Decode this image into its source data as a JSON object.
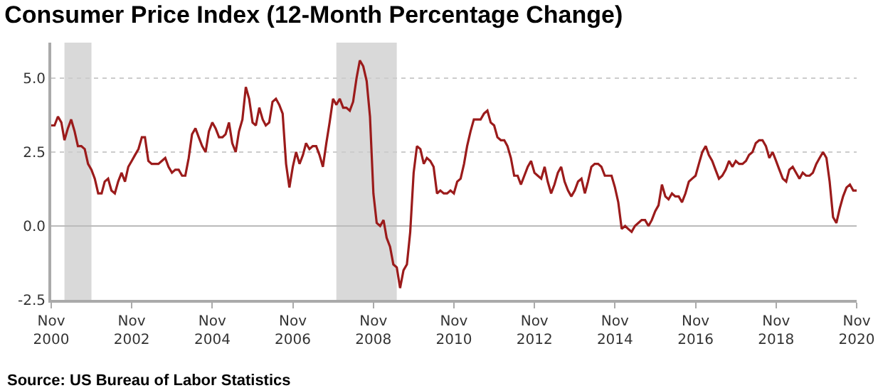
{
  "chart_data": {
    "type": "line",
    "title": "Consumer Price Index (12-Month Percentage Change)",
    "annotations": [
      "Source: US Bureau of Labor Statistics"
    ],
    "series": [
      {
        "color": "#9b1b1b",
        "x": [
          "2000-11",
          "2000-12",
          "2001-01",
          "2001-02",
          "2001-03",
          "2001-04",
          "2001-05",
          "2001-06",
          "2001-07",
          "2001-08",
          "2001-09",
          "2001-10",
          "2001-11",
          "2001-12",
          "2002-01",
          "2002-02",
          "2002-03",
          "2002-04",
          "2002-05",
          "2002-06",
          "2002-07",
          "2002-08",
          "2002-09",
          "2002-10",
          "2002-11",
          "2002-12",
          "2003-01",
          "2003-02",
          "2003-03",
          "2003-04",
          "2003-05",
          "2003-06",
          "2003-07",
          "2003-08",
          "2003-09",
          "2003-10",
          "2003-11",
          "2003-12",
          "2004-01",
          "2004-02",
          "2004-03",
          "2004-04",
          "2004-05",
          "2004-06",
          "2004-07",
          "2004-08",
          "2004-09",
          "2004-10",
          "2004-11",
          "2004-12",
          "2005-01",
          "2005-02",
          "2005-03",
          "2005-04",
          "2005-05",
          "2005-06",
          "2005-07",
          "2005-08",
          "2005-09",
          "2005-10",
          "2005-11",
          "2005-12",
          "2006-01",
          "2006-02",
          "2006-03",
          "2006-04",
          "2006-05",
          "2006-06",
          "2006-07",
          "2006-08",
          "2006-09",
          "2006-10",
          "2006-11",
          "2006-12",
          "2007-01",
          "2007-02",
          "2007-03",
          "2007-04",
          "2007-05",
          "2007-06",
          "2007-07",
          "2007-08",
          "2007-09",
          "2007-10",
          "2007-11",
          "2007-12",
          "2008-01",
          "2008-02",
          "2008-03",
          "2008-04",
          "2008-05",
          "2008-06",
          "2008-07",
          "2008-08",
          "2008-09",
          "2008-10",
          "2008-11",
          "2008-12",
          "2009-01",
          "2009-02",
          "2009-03",
          "2009-04",
          "2009-05",
          "2009-06",
          "2009-07",
          "2009-08",
          "2009-09",
          "2009-10",
          "2009-11",
          "2009-12",
          "2010-01",
          "2010-02",
          "2010-03",
          "2010-04",
          "2010-05",
          "2010-06",
          "2010-07",
          "2010-08",
          "2010-09",
          "2010-10",
          "2010-11",
          "2010-12",
          "2011-01",
          "2011-02",
          "2011-03",
          "2011-04",
          "2011-05",
          "2011-06",
          "2011-07",
          "2011-08",
          "2011-09",
          "2011-10",
          "2011-11",
          "2011-12",
          "2012-01",
          "2012-02",
          "2012-03",
          "2012-04",
          "2012-05",
          "2012-06",
          "2012-07",
          "2012-08",
          "2012-09",
          "2012-10",
          "2012-11",
          "2012-12",
          "2013-01",
          "2013-02",
          "2013-03",
          "2013-04",
          "2013-05",
          "2013-06",
          "2013-07",
          "2013-08",
          "2013-09",
          "2013-10",
          "2013-11",
          "2013-12",
          "2014-01",
          "2014-02",
          "2014-03",
          "2014-04",
          "2014-05",
          "2014-06",
          "2014-07",
          "2014-08",
          "2014-09",
          "2014-10",
          "2014-11",
          "2014-12",
          "2015-01",
          "2015-02",
          "2015-03",
          "2015-04",
          "2015-05",
          "2015-06",
          "2015-07",
          "2015-08",
          "2015-09",
          "2015-10",
          "2015-11",
          "2015-12",
          "2016-01",
          "2016-02",
          "2016-03",
          "2016-04",
          "2016-05",
          "2016-06",
          "2016-07",
          "2016-08",
          "2016-09",
          "2016-10",
          "2016-11",
          "2016-12",
          "2017-01",
          "2017-02",
          "2017-03",
          "2017-04",
          "2017-05",
          "2017-06",
          "2017-07",
          "2017-08",
          "2017-09",
          "2017-10",
          "2017-11",
          "2017-12",
          "2018-01",
          "2018-02",
          "2018-03",
          "2018-04",
          "2018-05",
          "2018-06",
          "2018-07",
          "2018-08",
          "2018-09",
          "2018-10",
          "2018-11",
          "2018-12",
          "2019-01",
          "2019-02",
          "2019-03",
          "2019-04",
          "2019-05",
          "2019-06",
          "2019-07",
          "2019-08",
          "2019-09",
          "2019-10",
          "2019-11",
          "2019-12",
          "2020-01",
          "2020-02",
          "2020-03",
          "2020-04",
          "2020-05",
          "2020-06",
          "2020-07",
          "2020-08",
          "2020-09",
          "2020-10",
          "2020-11"
        ],
        "values": [
          3.4,
          3.4,
          3.7,
          3.5,
          2.9,
          3.3,
          3.6,
          3.2,
          2.7,
          2.7,
          2.6,
          2.1,
          1.9,
          1.6,
          1.1,
          1.1,
          1.5,
          1.6,
          1.2,
          1.1,
          1.5,
          1.8,
          1.5,
          2.0,
          2.2,
          2.4,
          2.6,
          3.0,
          3.0,
          2.2,
          2.1,
          2.1,
          2.1,
          2.2,
          2.3,
          2.0,
          1.8,
          1.9,
          1.9,
          1.7,
          1.7,
          2.3,
          3.1,
          3.3,
          3.0,
          2.7,
          2.5,
          3.2,
          3.5,
          3.3,
          3.0,
          3.0,
          3.1,
          3.5,
          2.8,
          2.5,
          3.2,
          3.6,
          4.7,
          4.3,
          3.5,
          3.4,
          4.0,
          3.6,
          3.4,
          3.5,
          4.2,
          4.3,
          4.1,
          3.8,
          2.1,
          1.3,
          2.0,
          2.5,
          2.1,
          2.4,
          2.8,
          2.6,
          2.7,
          2.7,
          2.4,
          2.0,
          2.8,
          3.5,
          4.3,
          4.1,
          4.3,
          4.0,
          4.0,
          3.9,
          4.2,
          5.0,
          5.6,
          5.4,
          4.9,
          3.7,
          1.1,
          0.1,
          0.0,
          0.2,
          -0.4,
          -0.7,
          -1.3,
          -1.4,
          -2.1,
          -1.5,
          -1.3,
          -0.2,
          1.8,
          2.7,
          2.6,
          2.1,
          2.3,
          2.2,
          2.0,
          1.1,
          1.2,
          1.1,
          1.1,
          1.2,
          1.1,
          1.5,
          1.6,
          2.1,
          2.7,
          3.2,
          3.6,
          3.6,
          3.6,
          3.8,
          3.9,
          3.5,
          3.4,
          3.0,
          2.9,
          2.9,
          2.7,
          2.3,
          1.7,
          1.7,
          1.4,
          1.7,
          2.0,
          2.2,
          1.8,
          1.7,
          1.6,
          2.0,
          1.5,
          1.1,
          1.4,
          1.8,
          2.0,
          1.5,
          1.2,
          1.0,
          1.2,
          1.5,
          1.6,
          1.1,
          1.5,
          2.0,
          2.1,
          2.1,
          2.0,
          1.7,
          1.7,
          1.7,
          1.3,
          0.8,
          -0.1,
          0.0,
          -0.1,
          -0.2,
          0.0,
          0.1,
          0.2,
          0.2,
          0.0,
          0.2,
          0.5,
          0.7,
          1.4,
          1.0,
          0.9,
          1.1,
          1.0,
          1.0,
          0.8,
          1.1,
          1.5,
          1.6,
          1.7,
          2.1,
          2.5,
          2.7,
          2.4,
          2.2,
          1.9,
          1.6,
          1.7,
          1.9,
          2.2,
          2.0,
          2.2,
          2.1,
          2.1,
          2.2,
          2.4,
          2.5,
          2.8,
          2.9,
          2.9,
          2.7,
          2.3,
          2.5,
          2.2,
          1.9,
          1.6,
          1.5,
          1.9,
          2.0,
          1.8,
          1.6,
          1.8,
          1.7,
          1.7,
          1.8,
          2.1,
          2.3,
          2.5,
          2.3,
          1.5,
          0.3,
          0.1,
          0.6,
          1.0,
          1.3,
          1.4,
          1.2,
          1.2
        ]
      }
    ],
    "bands": [
      {
        "axis": "x",
        "from": "2001-03",
        "to": "2001-11",
        "color": "#d9d9d9"
      },
      {
        "axis": "x",
        "from": "2007-12",
        "to": "2009-06",
        "color": "#d9d9d9"
      }
    ],
    "xlim": [
      "2000-11",
      "2020-11"
    ],
    "xticks": [
      {
        "value": "2000-11",
        "label": "Nov 2000"
      },
      {
        "value": "2002-11",
        "label": "Nov 2002"
      },
      {
        "value": "2004-11",
        "label": "Nov 2004"
      },
      {
        "value": "2006-11",
        "label": "Nov 2006"
      },
      {
        "value": "2008-11",
        "label": "Nov 2008"
      },
      {
        "value": "2010-11",
        "label": "Nov 2010"
      },
      {
        "value": "2012-11",
        "label": "Nov 2012"
      },
      {
        "value": "2014-11",
        "label": "Nov 2014"
      },
      {
        "value": "2016-11",
        "label": "Nov 2016"
      },
      {
        "value": "2018-11",
        "label": "Nov 2018"
      },
      {
        "value": "2020-11",
        "label": "Nov 2020"
      }
    ],
    "ylim": [
      -2.5,
      6.2
    ],
    "yticks": [
      {
        "value": -2.5,
        "label": "-2.5"
      },
      {
        "value": 0,
        "label": "0.0"
      },
      {
        "value": 2.5,
        "label": "2.5"
      },
      {
        "value": 5,
        "label": "5.0"
      }
    ],
    "grid": "y",
    "marker": "none",
    "line_style": "solid"
  }
}
